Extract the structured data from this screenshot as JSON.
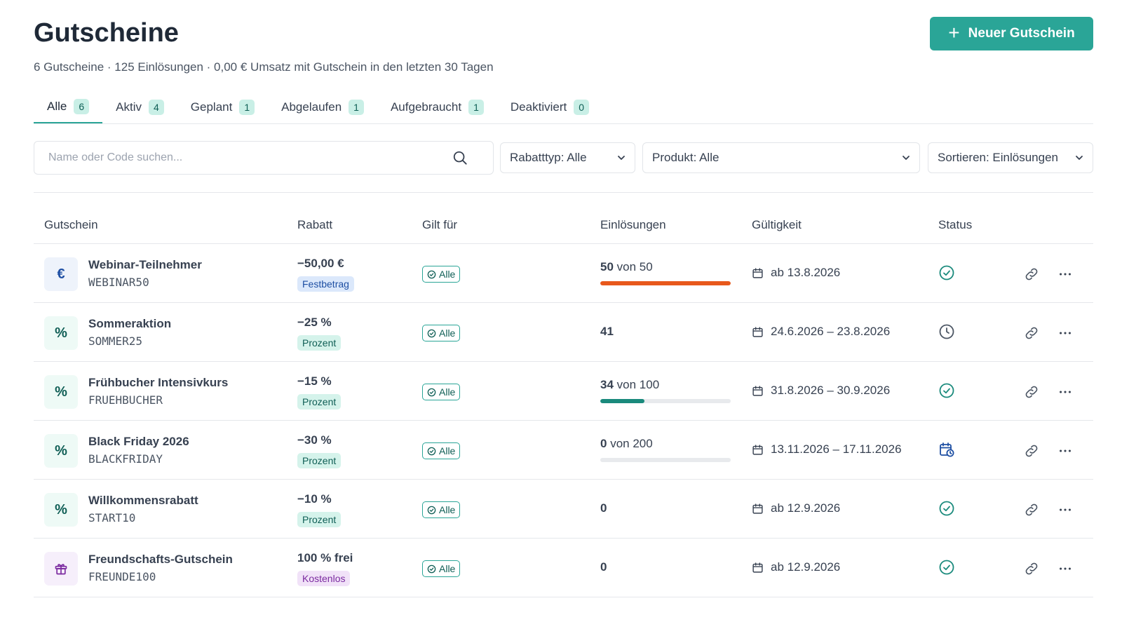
{
  "header": {
    "title": "Gutscheine",
    "subtitle": "6 Gutscheine · 125 Einlösungen · 0,00 € Umsatz mit Gutschein in den letzten 30 Tagen",
    "new_button_label": "Neuer Gutschein"
  },
  "tabs": [
    {
      "label": "Alle",
      "count": "6"
    },
    {
      "label": "Aktiv",
      "count": "4"
    },
    {
      "label": "Geplant",
      "count": "1"
    },
    {
      "label": "Abgelaufen",
      "count": "1"
    },
    {
      "label": "Aufgebraucht",
      "count": "1"
    },
    {
      "label": "Deaktiviert",
      "count": "0"
    }
  ],
  "filters": {
    "search_placeholder": "Name oder Code suchen...",
    "discount_type": "Rabatttyp: Alle",
    "product": "Produkt: Alle",
    "sort": "Sortieren: Einlösungen"
  },
  "table": {
    "columns": [
      "Gutschein",
      "Rabatt",
      "Gilt für",
      "Einlösungen",
      "Gültigkeit",
      "Status"
    ],
    "rows": [
      {
        "icon": "euro-icon",
        "icon_glyph": "€",
        "icon_bg": "#eef3fb",
        "icon_color": "#1e4fa3",
        "name": "Webinar-Teilnehmer",
        "code": "WEBINAR50",
        "discount": "−50,00 €",
        "type": "Festbetrag",
        "type_bg": "#dbe8fb",
        "type_color": "#1e4fa3",
        "applies": "Alle",
        "redeemed": "50",
        "limit_text": "von 50",
        "progress": 1.0,
        "progress_color": "#e8581c",
        "validity": "ab 13.8.2026",
        "status": "active"
      },
      {
        "icon": "percent-icon",
        "icon_glyph": "%",
        "icon_bg": "#eefaf6",
        "icon_color": "#0f5e55",
        "name": "Sommeraktion",
        "code": "SOMMER25",
        "discount": "−25 %",
        "type": "Prozent",
        "type_bg": "#d5f3eb",
        "type_color": "#0f5e55",
        "applies": "Alle",
        "redeemed": "41",
        "limit_text": "",
        "progress": null,
        "progress_color": "",
        "validity": "24.6.2026 – 23.8.2026",
        "status": "expired"
      },
      {
        "icon": "percent-icon",
        "icon_glyph": "%",
        "icon_bg": "#eefaf6",
        "icon_color": "#0f5e55",
        "name": "Frühbucher Intensivkurs",
        "code": "FRUEHBUCHER",
        "discount": "−15 %",
        "type": "Prozent",
        "type_bg": "#d5f3eb",
        "type_color": "#0f5e55",
        "applies": "Alle",
        "redeemed": "34",
        "limit_text": "von 100",
        "progress": 0.34,
        "progress_color": "#1a8a7c",
        "validity": "31.8.2026 – 30.9.2026",
        "status": "active"
      },
      {
        "icon": "percent-icon",
        "icon_glyph": "%",
        "icon_bg": "#eefaf6",
        "icon_color": "#0f5e55",
        "name": "Black Friday 2026",
        "code": "BLACKFRIDAY",
        "discount": "−30 %",
        "type": "Prozent",
        "type_bg": "#d5f3eb",
        "type_color": "#0f5e55",
        "applies": "Alle",
        "redeemed": "0",
        "limit_text": "von 200",
        "progress": 0.0,
        "progress_color": "#1a8a7c",
        "validity": "13.11.2026 – 17.11.2026",
        "status": "scheduled"
      },
      {
        "icon": "percent-icon",
        "icon_glyph": "%",
        "icon_bg": "#eefaf6",
        "icon_color": "#0f5e55",
        "name": "Willkommensrabatt",
        "code": "START10",
        "discount": "−10 %",
        "type": "Prozent",
        "type_bg": "#d5f3eb",
        "type_color": "#0f5e55",
        "applies": "Alle",
        "redeemed": "0",
        "limit_text": "",
        "progress": null,
        "progress_color": "",
        "validity": "ab 12.9.2026",
        "status": "active"
      },
      {
        "icon": "gift-icon",
        "icon_glyph": "",
        "icon_bg": "#f6effb",
        "icon_color": "#7b2aa0",
        "name": "Freundschafts-Gutschein",
        "code": "FREUNDE100",
        "discount": "100 % frei",
        "type": "Kostenlos",
        "type_bg": "#f1e2f8",
        "type_color": "#7b2aa0",
        "applies": "Alle",
        "redeemed": "0",
        "limit_text": "",
        "progress": null,
        "progress_color": "",
        "validity": "ab 12.9.2026",
        "status": "active"
      }
    ]
  },
  "colors": {
    "accent": "#2aa597",
    "status_active": "#1a8a7c",
    "status_scheduled": "#1e4fa3",
    "status_expired": "#4b5563"
  }
}
